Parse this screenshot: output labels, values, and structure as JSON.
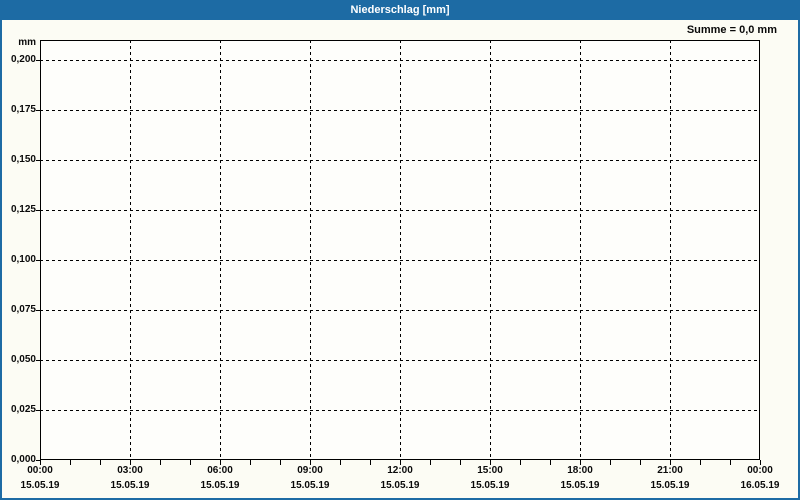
{
  "window": {
    "title": "Niederschlag [mm]"
  },
  "summary_label": "Summe = 0,0 mm",
  "colors": {
    "accent_blue": "#1d6ba4",
    "grid": "#000000",
    "panel_bg": "#fcfcf4",
    "plot_bg": "#fefefb",
    "text": "#0a0a0a",
    "title_text": "#ffffff"
  },
  "chart_data": {
    "type": "line",
    "title": "Niederschlag [mm]",
    "ylabel_unit": "mm",
    "ylim": [
      0,
      0.21
    ],
    "xlim_hours": [
      0,
      24
    ],
    "grid": "dashed",
    "legend": "none",
    "y_ticks": [
      {
        "value": 0.2,
        "label": "0,200"
      },
      {
        "value": 0.175,
        "label": "0,175"
      },
      {
        "value": 0.15,
        "label": "0,150"
      },
      {
        "value": 0.125,
        "label": "0,125"
      },
      {
        "value": 0.1,
        "label": "0,100"
      },
      {
        "value": 0.075,
        "label": "0,075"
      },
      {
        "value": 0.05,
        "label": "0,050"
      },
      {
        "value": 0.025,
        "label": "0,025"
      },
      {
        "value": 0.0,
        "label": "0,000"
      }
    ],
    "x_ticks_major": [
      {
        "hour": 0,
        "time": "00:00",
        "date": "15.05.19"
      },
      {
        "hour": 3,
        "time": "03:00",
        "date": "15.05.19"
      },
      {
        "hour": 6,
        "time": "06:00",
        "date": "15.05.19"
      },
      {
        "hour": 9,
        "time": "09:00",
        "date": "15.05.19"
      },
      {
        "hour": 12,
        "time": "12:00",
        "date": "15.05.19"
      },
      {
        "hour": 15,
        "time": "15:00",
        "date": "15.05.19"
      },
      {
        "hour": 18,
        "time": "18:00",
        "date": "15.05.19"
      },
      {
        "hour": 21,
        "time": "21:00",
        "date": "15.05.19"
      },
      {
        "hour": 24,
        "time": "00:00",
        "date": "16.05.19"
      }
    ],
    "x_minor_tick_every_hours": 1,
    "series": [
      {
        "name": "Niederschlag",
        "unit": "mm",
        "points": [],
        "sum_display": "0,0 mm"
      }
    ]
  }
}
